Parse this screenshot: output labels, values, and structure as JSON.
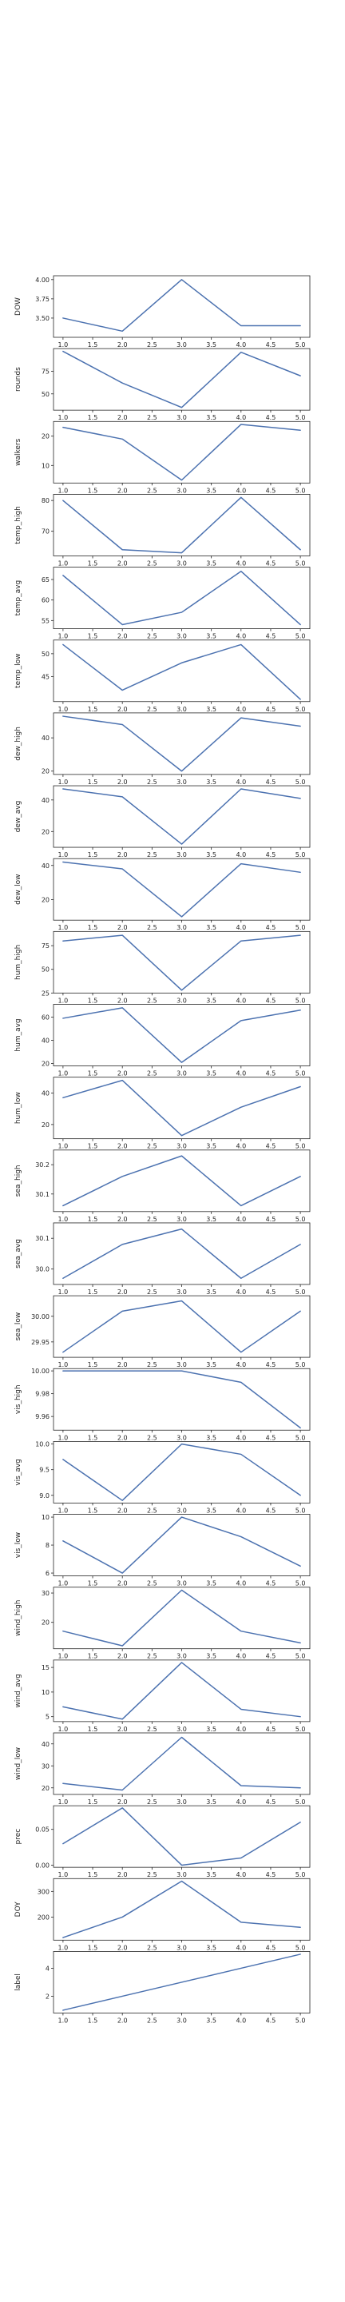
{
  "chart_data": {
    "type": "line",
    "x": [
      1,
      2,
      3,
      4,
      5
    ],
    "xticks": [
      "1.0",
      "1.5",
      "2.0",
      "2.5",
      "3.0",
      "3.5",
      "4.0",
      "4.5",
      "5.0"
    ],
    "line_color": "#4c72b0",
    "grid": false,
    "panels": [
      {
        "ylabel": "DOW",
        "values": [
          3.5,
          3.33,
          4.0,
          3.4,
          3.4
        ],
        "ylim": [
          3.25,
          4.05
        ],
        "yticks": [
          "3.50",
          "3.75",
          "4.00"
        ],
        "ytick_values": [
          3.5,
          3.75,
          4.0
        ]
      },
      {
        "ylabel": "rounds",
        "values": [
          97,
          62,
          35,
          96,
          70
        ],
        "ylim": [
          32,
          100
        ],
        "yticks": [
          "50",
          "75"
        ],
        "ytick_values": [
          50,
          75
        ]
      },
      {
        "ylabel": "walkers",
        "values": [
          23,
          19,
          5,
          24,
          22
        ],
        "ylim": [
          4,
          25
        ],
        "yticks": [
          "10",
          "20"
        ],
        "ytick_values": [
          10,
          20
        ]
      },
      {
        "ylabel": "temp_high",
        "values": [
          80,
          64,
          63,
          81,
          64
        ],
        "ylim": [
          62,
          82
        ],
        "yticks": [
          "70",
          "80"
        ],
        "ytick_values": [
          70,
          80
        ]
      },
      {
        "ylabel": "temp_avg",
        "values": [
          66,
          54,
          57,
          67,
          54
        ],
        "ylim": [
          53,
          68
        ],
        "yticks": [
          "55",
          "60",
          "65"
        ],
        "ytick_values": [
          55,
          60,
          65
        ]
      },
      {
        "ylabel": "temp_low",
        "values": [
          52,
          42,
          48,
          52,
          40
        ],
        "ylim": [
          39.5,
          53
        ],
        "yticks": [
          "45",
          "50"
        ],
        "ytick_values": [
          45,
          50
        ]
      },
      {
        "ylabel": "dew_high",
        "values": [
          53,
          48,
          20,
          52,
          47
        ],
        "ylim": [
          18,
          55
        ],
        "yticks": [
          "20",
          "40"
        ],
        "ytick_values": [
          20,
          40
        ]
      },
      {
        "ylabel": "dew_avg",
        "values": [
          47,
          42,
          12,
          47,
          41
        ],
        "ylim": [
          10,
          49
        ],
        "yticks": [
          "20",
          "40"
        ],
        "ytick_values": [
          20,
          40
        ]
      },
      {
        "ylabel": "dew_low",
        "values": [
          42,
          38,
          10,
          41,
          36
        ],
        "ylim": [
          8,
          44
        ],
        "yticks": [
          "20",
          "40"
        ],
        "ytick_values": [
          20,
          40
        ]
      },
      {
        "ylabel": "hum_high",
        "values": [
          80,
          86,
          28,
          80,
          86
        ],
        "ylim": [
          25,
          90
        ],
        "yticks": [
          "25",
          "50",
          "75"
        ],
        "ytick_values": [
          25,
          50,
          75
        ]
      },
      {
        "ylabel": "hum_avg",
        "values": [
          59,
          68,
          21,
          57,
          66
        ],
        "ylim": [
          18,
          71
        ],
        "yticks": [
          "20",
          "40",
          "60"
        ],
        "ytick_values": [
          20,
          40,
          60
        ]
      },
      {
        "ylabel": "hum_low",
        "values": [
          37,
          48,
          13,
          31,
          44
        ],
        "ylim": [
          11,
          50
        ],
        "yticks": [
          "20",
          "40"
        ],
        "ytick_values": [
          20,
          40
        ]
      },
      {
        "ylabel": "sea_high",
        "values": [
          30.06,
          30.16,
          30.23,
          30.06,
          30.16
        ],
        "ylim": [
          30.04,
          30.25
        ],
        "yticks": [
          "30.1",
          "30.2"
        ],
        "ytick_values": [
          30.1,
          30.2
        ]
      },
      {
        "ylabel": "sea_avg",
        "values": [
          29.97,
          30.08,
          30.13,
          29.97,
          30.08
        ],
        "ylim": [
          29.95,
          30.15
        ],
        "yticks": [
          "30.0",
          "30.1"
        ],
        "ytick_values": [
          30.0,
          30.1
        ]
      },
      {
        "ylabel": "sea_low",
        "values": [
          29.93,
          30.01,
          30.03,
          29.93,
          30.01
        ],
        "ylim": [
          29.92,
          30.04
        ],
        "yticks": [
          "29.95",
          "30.00"
        ],
        "ytick_values": [
          29.95,
          30.0
        ]
      },
      {
        "ylabel": "vis_high",
        "values": [
          10.0,
          10.0,
          10.0,
          9.99,
          9.95
        ],
        "ylim": [
          9.948,
          10.002
        ],
        "yticks": [
          "9.96",
          "9.98",
          "10.00"
        ],
        "ytick_values": [
          9.96,
          9.98,
          10.0
        ]
      },
      {
        "ylabel": "vis_avg",
        "values": [
          9.7,
          8.9,
          10.0,
          9.8,
          9.0
        ],
        "ylim": [
          8.85,
          10.05
        ],
        "yticks": [
          "9.0",
          "9.5",
          "10.0"
        ],
        "ytick_values": [
          9.0,
          9.5,
          10.0
        ]
      },
      {
        "ylabel": "vis_low",
        "values": [
          8.3,
          6.0,
          10.0,
          8.6,
          6.5
        ],
        "ylim": [
          5.8,
          10.2
        ],
        "yticks": [
          "6",
          "8",
          "10"
        ],
        "ytick_values": [
          6,
          8,
          10
        ]
      },
      {
        "ylabel": "wind_high",
        "values": [
          17,
          12,
          31,
          17,
          13
        ],
        "ylim": [
          11,
          32
        ],
        "yticks": [
          "20",
          "30"
        ],
        "ytick_values": [
          20,
          30
        ]
      },
      {
        "ylabel": "wind_avg",
        "values": [
          7,
          4.5,
          16,
          6.5,
          5
        ],
        "ylim": [
          4,
          16.5
        ],
        "yticks": [
          "5",
          "10",
          "15"
        ],
        "ytick_values": [
          5,
          10,
          15
        ]
      },
      {
        "ylabel": "wind_low",
        "values": [
          22,
          19,
          43,
          21,
          20
        ],
        "ylim": [
          17,
          45
        ],
        "yticks": [
          "20",
          "30",
          "40"
        ],
        "ytick_values": [
          20,
          30,
          40
        ]
      },
      {
        "ylabel": "prec",
        "values": [
          0.03,
          0.08,
          0.0,
          0.01,
          0.06
        ],
        "ylim": [
          -0.003,
          0.083
        ],
        "yticks": [
          "0.00",
          "0.05"
        ],
        "ytick_values": [
          0.0,
          0.05
        ]
      },
      {
        "ylabel": "DOY",
        "values": [
          120,
          200,
          340,
          180,
          160
        ],
        "ylim": [
          110,
          350
        ],
        "yticks": [
          "200",
          "300"
        ],
        "ytick_values": [
          200,
          300
        ]
      },
      {
        "ylabel": "label",
        "values": [
          1,
          2,
          3,
          4,
          5
        ],
        "ylim": [
          0.8,
          5.2
        ],
        "yticks": [
          "2",
          "4"
        ],
        "ytick_values": [
          2,
          4
        ]
      }
    ]
  }
}
